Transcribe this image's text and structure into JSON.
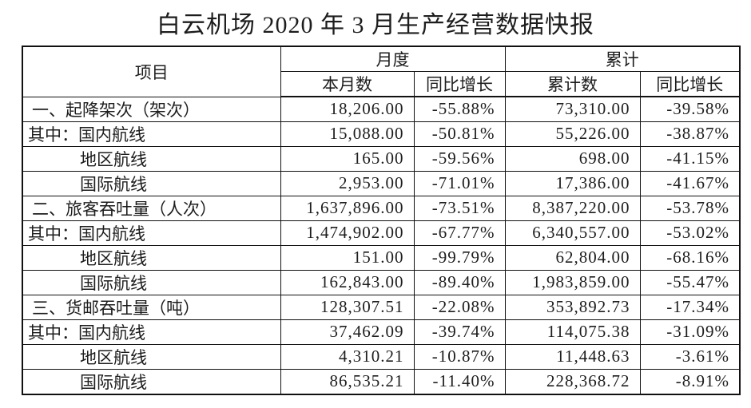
{
  "title": "白云机场 2020 年 3 月生产经营数据快报",
  "table": {
    "headers": {
      "item": "项目",
      "monthly_group": "月度",
      "cumulative_group": "累计",
      "month_value": "本月数",
      "month_yoy": "同比增长",
      "cum_value": "累计数",
      "cum_yoy": "同比增长"
    },
    "rows": [
      {
        "label": "一、起降架次（架次）",
        "month": "18,206.00",
        "month_yoy": "-55.88%",
        "cum": "73,310.00",
        "cum_yoy": "-39.58%"
      },
      {
        "label": "其中：国内航线",
        "month": "15,088.00",
        "month_yoy": "-50.81%",
        "cum": "55,226.00",
        "cum_yoy": "-38.87%"
      },
      {
        "label": "地区航线",
        "month": "165.00",
        "month_yoy": "-59.56%",
        "cum": "698.00",
        "cum_yoy": "-41.15%"
      },
      {
        "label": "国际航线",
        "month": "2,953.00",
        "month_yoy": "-71.01%",
        "cum": "17,386.00",
        "cum_yoy": "-41.67%"
      },
      {
        "label": "二、旅客吞吐量（人次）",
        "month": "1,637,896.00",
        "month_yoy": "-73.51%",
        "cum": "8,387,220.00",
        "cum_yoy": "-53.78%"
      },
      {
        "label": "其中：国内航线",
        "month": "1,474,902.00",
        "month_yoy": "-67.77%",
        "cum": "6,340,557.00",
        "cum_yoy": "-53.02%"
      },
      {
        "label": "地区航线",
        "month": "151.00",
        "month_yoy": "-99.79%",
        "cum": "62,804.00",
        "cum_yoy": "-68.16%"
      },
      {
        "label": "国际航线",
        "month": "162,843.00",
        "month_yoy": "-89.40%",
        "cum": "1,983,859.00",
        "cum_yoy": "-55.47%"
      },
      {
        "label": "三、货邮吞吐量（吨）",
        "month": "128,307.51",
        "month_yoy": "-22.08%",
        "cum": "353,892.73",
        "cum_yoy": "-17.34%"
      },
      {
        "label": "其中：国内航线",
        "month": "37,462.09",
        "month_yoy": "-39.74%",
        "cum": "114,075.38",
        "cum_yoy": "-31.09%"
      },
      {
        "label": "地区航线",
        "month": "4,310.21",
        "month_yoy": "-10.87%",
        "cum": "11,448.63",
        "cum_yoy": "-3.61%"
      },
      {
        "label": "国际航线",
        "month": "86,535.21",
        "month_yoy": "-11.40%",
        "cum": "228,368.72",
        "cum_yoy": "-8.91%"
      }
    ]
  }
}
